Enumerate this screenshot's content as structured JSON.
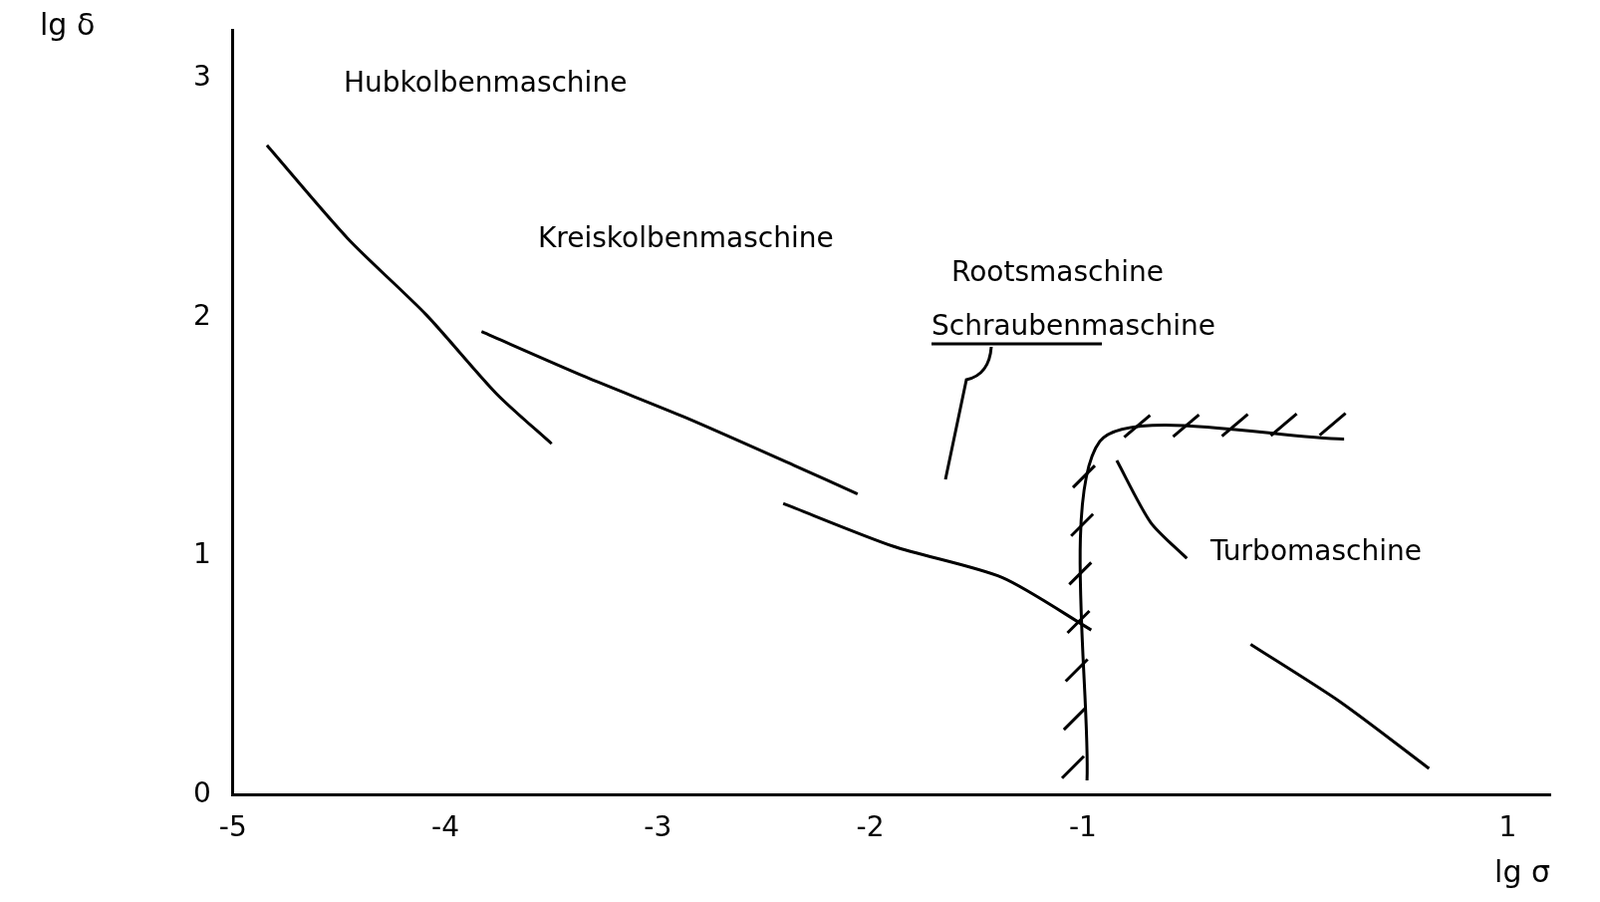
{
  "chart_data": {
    "type": "line",
    "x_label": "lg σ",
    "y_label": "lg δ",
    "xlim": [
      -5,
      1.2
    ],
    "xticks": [
      -5,
      -4,
      -3,
      -2,
      -1,
      1
    ],
    "ylim": [
      0,
      3.2
    ],
    "yticks": [
      0,
      1,
      2,
      3
    ],
    "grid": false,
    "series": [
      {
        "name": "Hubkolbenmaschine",
        "color": "#000000",
        "line_style": "solid",
        "x": [
          -4.84,
          -4.46,
          -4.09,
          -3.76,
          -3.5
        ],
        "values": [
          2.72,
          2.33,
          2.01,
          1.68,
          1.47
        ]
      },
      {
        "name": "Kreiskolbenmaschine",
        "color": "#000000",
        "line_style": "solid",
        "x": [
          -3.83,
          -3.34,
          -2.87,
          -2.36,
          -2.06
        ],
        "values": [
          1.94,
          1.75,
          1.58,
          1.38,
          1.26
        ]
      },
      {
        "name": "Schraubenmaschine",
        "color": "#000000",
        "line_style": "solid",
        "x": [
          -2.41,
          -1.89,
          -1.38,
          -0.96
        ],
        "values": [
          1.22,
          1.04,
          0.91,
          0.69
        ]
      },
      {
        "name": "Turbomaschine",
        "color": "#000000",
        "line_style": "solid",
        "x": [
          -0.84,
          -0.68,
          -0.51,
          null,
          -0.21,
          0.21,
          0.63
        ],
        "values": [
          1.4,
          1.14,
          0.99,
          null,
          0.63,
          0.39,
          0.11
        ]
      },
      {
        "color": "#000000",
        "line_style": "hatched",
        "x": [
          -0.98,
          -0.92,
          0.23
        ],
        "values": [
          0.06,
          1.48,
          1.49
        ]
      }
    ],
    "annotations": [
      "Rootsmaschine"
    ]
  }
}
